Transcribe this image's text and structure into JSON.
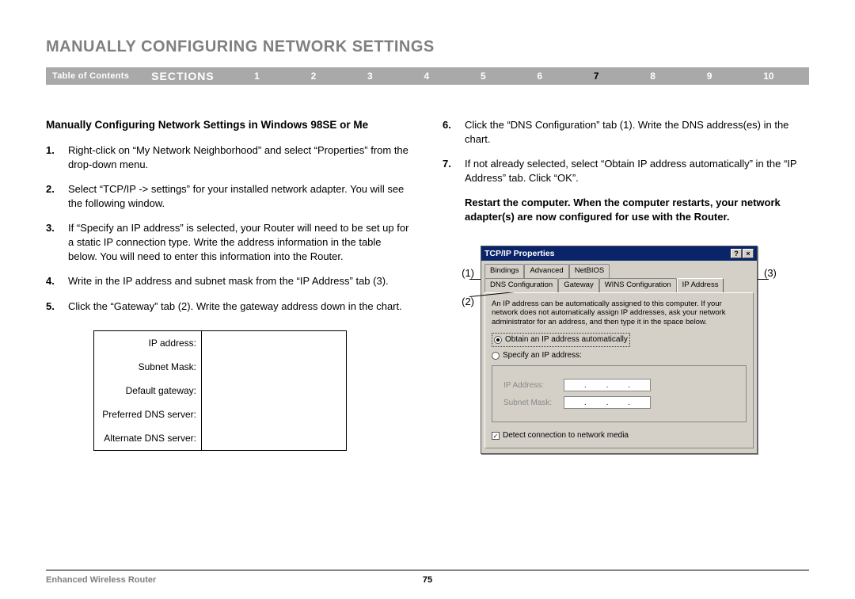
{
  "page": {
    "title": "MANUALLY CONFIGURING NETWORK SETTINGS",
    "toc_label": "Table of Contents",
    "sections_label": "SECTIONS",
    "section_numbers": [
      "1",
      "2",
      "3",
      "4",
      "5",
      "6",
      "7",
      "8",
      "9",
      "10"
    ],
    "active_section_index": 6,
    "product": "Enhanced Wireless Router",
    "page_number": "75",
    "navbar_bg": "#a9a9a9",
    "title_color": "#808080"
  },
  "subtitle": "Manually Configuring Network Settings in Windows 98SE or Me",
  "steps_left": [
    "Right-click on “My Network Neighborhood” and select “Properties” from the drop-down menu.",
    "Select “TCP/IP -> settings” for your installed network adapter. You will see the following window.",
    "If “Specify an IP address” is selected, your Router will need to be set up for a static IP connection type. Write the address information in the table below. You will need to enter this information into the Router.",
    "Write in the IP address and subnet mask from the “IP Address” tab (3).",
    "Click the “Gateway” tab (2). Write the gateway address down in the chart."
  ],
  "steps_right": [
    "Click the “DNS Configuration” tab (1). Write the DNS address(es) in the chart.",
    "If not already selected, select “Obtain IP address automatically” in the “IP Address” tab. Click “OK”."
  ],
  "restart_note": "Restart the computer. When the computer restarts, your network adapter(s) are now configured for use with the Router.",
  "input_table": {
    "rows": [
      "IP address:",
      "Subnet Mask:",
      "Default gateway:",
      "Preferred DNS server:",
      "Alternate DNS server:"
    ]
  },
  "callouts": {
    "left1": "(1)",
    "left2": "(2)",
    "right1": "(3)"
  },
  "dialog": {
    "title": "TCP/IP Properties",
    "tabs_row1": [
      "Bindings",
      "Advanced",
      "NetBIOS"
    ],
    "tabs_row2": [
      "DNS Configuration",
      "Gateway",
      "WINS Configuration",
      "IP Address"
    ],
    "active_tab": "IP Address",
    "panel_text": "An IP address can be automatically assigned to this computer. If your network does not automatically assign IP addresses, ask your network administrator for an address, and then type it in the space below.",
    "radio_obtain": "Obtain an IP address automatically",
    "radio_specify": "Specify an IP address:",
    "ip_label": "IP Address:",
    "mask_label": "Subnet Mask:",
    "detect_label": "Detect connection to network media",
    "titlebar_bg": "#0a246a",
    "dialog_bg": "#d4d0c8"
  }
}
